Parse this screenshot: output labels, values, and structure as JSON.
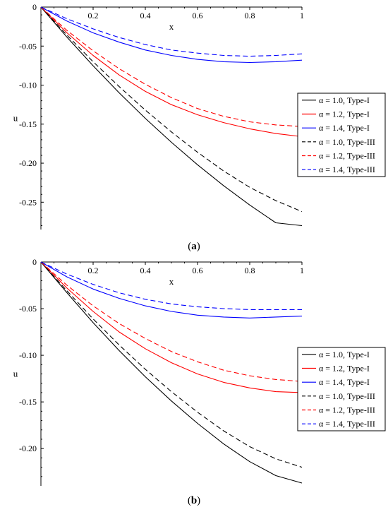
{
  "chart_data": [
    {
      "type": "line",
      "panel_label": "a",
      "xlabel": "x",
      "ylabel": "u",
      "xlim": [
        0,
        1
      ],
      "ylim": [
        -0.285,
        0
      ],
      "x_ticks": [
        0.2,
        0.4,
        0.6,
        0.8,
        1
      ],
      "x_tick_labels": [
        "0.2",
        "0.4",
        "0.6",
        "0.8",
        "1"
      ],
      "y_ticks": [
        0,
        -0.05,
        -0.1,
        -0.15,
        -0.2,
        -0.25
      ],
      "y_tick_labels": [
        "0",
        "-0.05",
        "-0.10",
        "-0.15",
        "-0.20",
        "-0.25"
      ],
      "legend_position": "right",
      "grid": false,
      "x": [
        0,
        0.1,
        0.2,
        0.3,
        0.4,
        0.5,
        0.6,
        0.7,
        0.8,
        0.9,
        1.0
      ],
      "series": [
        {
          "name": "α = 1.0, Type-I",
          "color": "#000000",
          "dash": "solid",
          "values": [
            0,
            -0.0386,
            -0.0752,
            -0.1099,
            -0.1426,
            -0.1733,
            -0.202,
            -0.2288,
            -0.2536,
            -0.2764,
            -0.28
          ]
        },
        {
          "name": "α = 1.2, Type-I",
          "color": "#ff0000",
          "dash": "solid",
          "values": [
            0,
            -0.033,
            -0.062,
            -0.087,
            -0.108,
            -0.125,
            -0.138,
            -0.148,
            -0.156,
            -0.162,
            -0.166
          ]
        },
        {
          "name": "α = 1.4, Type-I",
          "color": "#0000ff",
          "dash": "solid",
          "values": [
            0,
            -0.018,
            -0.033,
            -0.045,
            -0.055,
            -0.062,
            -0.067,
            -0.07,
            -0.071,
            -0.07,
            -0.068
          ]
        },
        {
          "name": "α = 1.0, Type-III",
          "color": "#000000",
          "dash": "dashed",
          "values": [
            0,
            -0.036,
            -0.07,
            -0.102,
            -0.132,
            -0.16,
            -0.186,
            -0.21,
            -0.231,
            -0.248,
            -0.262
          ]
        },
        {
          "name": "α = 1.2, Type-III",
          "color": "#ff0000",
          "dash": "dashed",
          "values": [
            0,
            -0.03,
            -0.056,
            -0.079,
            -0.099,
            -0.116,
            -0.13,
            -0.14,
            -0.147,
            -0.151,
            -0.153
          ]
        },
        {
          "name": "α = 1.4, Type-III",
          "color": "#0000ff",
          "dash": "dashed",
          "values": [
            0,
            -0.015,
            -0.028,
            -0.039,
            -0.048,
            -0.055,
            -0.059,
            -0.062,
            -0.063,
            -0.062,
            -0.06
          ]
        }
      ]
    },
    {
      "type": "line",
      "panel_label": "b",
      "xlabel": "x",
      "ylabel": "u",
      "xlim": [
        0,
        1
      ],
      "ylim": [
        -0.24,
        0
      ],
      "x_ticks": [
        0.2,
        0.4,
        0.6,
        0.8,
        1
      ],
      "x_tick_labels": [
        "0.2",
        "0.4",
        "0.6",
        "0.8",
        "1"
      ],
      "y_ticks": [
        0,
        -0.05,
        -0.1,
        -0.15,
        -0.2
      ],
      "y_tick_labels": [
        "0",
        "-0.05",
        "-0.10",
        "-0.15",
        "-0.20"
      ],
      "legend_position": "right",
      "grid": false,
      "x": [
        0,
        0.1,
        0.2,
        0.3,
        0.4,
        0.5,
        0.6,
        0.7,
        0.8,
        0.9,
        1.0
      ],
      "series": [
        {
          "name": "α = 1.0, Type-I",
          "color": "#000000",
          "dash": "solid",
          "values": [
            0,
            -0.033,
            -0.065,
            -0.095,
            -0.123,
            -0.149,
            -0.173,
            -0.195,
            -0.214,
            -0.229,
            -0.237
          ]
        },
        {
          "name": "α = 1.2, Type-I",
          "color": "#ff0000",
          "dash": "solid",
          "values": [
            0,
            -0.028,
            -0.053,
            -0.075,
            -0.093,
            -0.108,
            -0.12,
            -0.129,
            -0.135,
            -0.139,
            -0.14
          ]
        },
        {
          "name": "α = 1.4, Type-I",
          "color": "#0000ff",
          "dash": "solid",
          "values": [
            0,
            -0.016,
            -0.029,
            -0.039,
            -0.047,
            -0.053,
            -0.057,
            -0.059,
            -0.06,
            -0.059,
            -0.058
          ]
        },
        {
          "name": "α = 1.0, Type-III",
          "color": "#000000",
          "dash": "dashed",
          "values": [
            0,
            -0.031,
            -0.061,
            -0.089,
            -0.115,
            -0.139,
            -0.161,
            -0.181,
            -0.198,
            -0.211,
            -0.22
          ]
        },
        {
          "name": "α = 1.2, Type-III",
          "color": "#ff0000",
          "dash": "dashed",
          "values": [
            0,
            -0.025,
            -0.047,
            -0.066,
            -0.082,
            -0.096,
            -0.107,
            -0.116,
            -0.122,
            -0.126,
            -0.128
          ]
        },
        {
          "name": "α = 1.4, Type-III",
          "color": "#0000ff",
          "dash": "dashed",
          "values": [
            0,
            -0.013,
            -0.024,
            -0.033,
            -0.04,
            -0.045,
            -0.048,
            -0.05,
            -0.051,
            -0.051,
            -0.051
          ]
        }
      ]
    }
  ]
}
